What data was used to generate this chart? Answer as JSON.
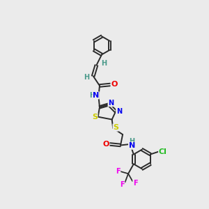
{
  "background_color": "#ebebeb",
  "figsize": [
    3.0,
    3.0
  ],
  "dpi": 100,
  "atom_colors": {
    "C": "#2a2a2a",
    "H": "#4a9a8a",
    "N": "#0000ee",
    "O": "#ee0000",
    "S": "#cccc00",
    "Cl": "#22bb22",
    "F": "#ee00ee"
  },
  "bond_color": "#2a2a2a",
  "bond_width": 1.4
}
